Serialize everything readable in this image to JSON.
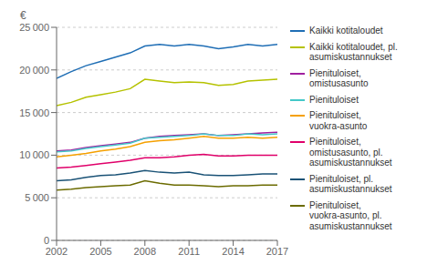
{
  "chart_data": {
    "type": "line",
    "ylabel": "€",
    "x": [
      2002,
      2003,
      2004,
      2005,
      2006,
      2007,
      2008,
      2009,
      2010,
      2011,
      2012,
      2013,
      2014,
      2015,
      2016,
      2017
    ],
    "series": [
      {
        "name": "Kaikki kotitaloudet",
        "color": "#1f6eb5",
        "values": [
          19000,
          19800,
          20500,
          21000,
          21500,
          22000,
          22800,
          23000,
          22800,
          23000,
          22800,
          22500,
          22700,
          23000,
          22800,
          23000
        ]
      },
      {
        "name": "Kaikki kotitaloudet, pl.\nasumiskustannukset",
        "color": "#b5c200",
        "values": [
          15800,
          16200,
          16800,
          17100,
          17400,
          17800,
          18900,
          18700,
          18500,
          18600,
          18500,
          18200,
          18300,
          18700,
          18800,
          18900
        ]
      },
      {
        "name": "Pienituloiset,\nomistusasunto",
        "color": "#a020a0",
        "values": [
          10500,
          10600,
          10900,
          11100,
          11300,
          11500,
          12000,
          12200,
          12300,
          12400,
          12500,
          12300,
          12400,
          12500,
          12600,
          12700
        ]
      },
      {
        "name": "Pienituloiset",
        "color": "#44c8c8",
        "values": [
          10400,
          10500,
          10800,
          11000,
          11200,
          11400,
          12000,
          12100,
          12200,
          12300,
          12500,
          12300,
          12300,
          12500,
          12400,
          12500
        ]
      },
      {
        "name": "Pienituloiset,\nvuokra-asunto",
        "color": "#f5a000",
        "values": [
          9800,
          10000,
          10200,
          10500,
          10700,
          11000,
          11500,
          11700,
          11800,
          12000,
          12200,
          12000,
          12000,
          12100,
          12000,
          12100
        ]
      },
      {
        "name": "Pienituloiset,\nomistusasunto, pl.\nasumiskustannukset",
        "color": "#e0006a",
        "values": [
          8500,
          8600,
          8800,
          9000,
          9200,
          9400,
          9700,
          9700,
          9800,
          10000,
          10100,
          9900,
          9900,
          10000,
          10000,
          10000
        ]
      },
      {
        "name": "Pienituloiset, pl.\nasumiskustannukset",
        "color": "#1a5276",
        "values": [
          7000,
          7100,
          7400,
          7600,
          7700,
          7900,
          8200,
          8000,
          7900,
          8000,
          7700,
          7600,
          7600,
          7700,
          7800,
          7800
        ]
      },
      {
        "name": "Pienituloiset,\nvuokra-asunto, pl.\nasumiskustannukset",
        "color": "#6b6b00",
        "values": [
          5900,
          6000,
          6200,
          6300,
          6400,
          6500,
          7000,
          6700,
          6500,
          6500,
          6400,
          6300,
          6400,
          6400,
          6500,
          6500
        ]
      }
    ],
    "xlim": [
      2002,
      2017
    ],
    "xticks": [
      2002,
      2005,
      2008,
      2011,
      2014,
      2017
    ],
    "ylim": [
      0,
      25000
    ],
    "yticks": [
      0,
      {
        "value": 5000,
        "label": "5 000"
      },
      {
        "value": 10000,
        "label": "10 000"
      },
      {
        "value": 15000,
        "label": "15 000"
      },
      {
        "value": 20000,
        "label": "20 000"
      },
      {
        "value": 25000,
        "label": "25 000"
      }
    ],
    "grid": true,
    "legend": "right"
  }
}
